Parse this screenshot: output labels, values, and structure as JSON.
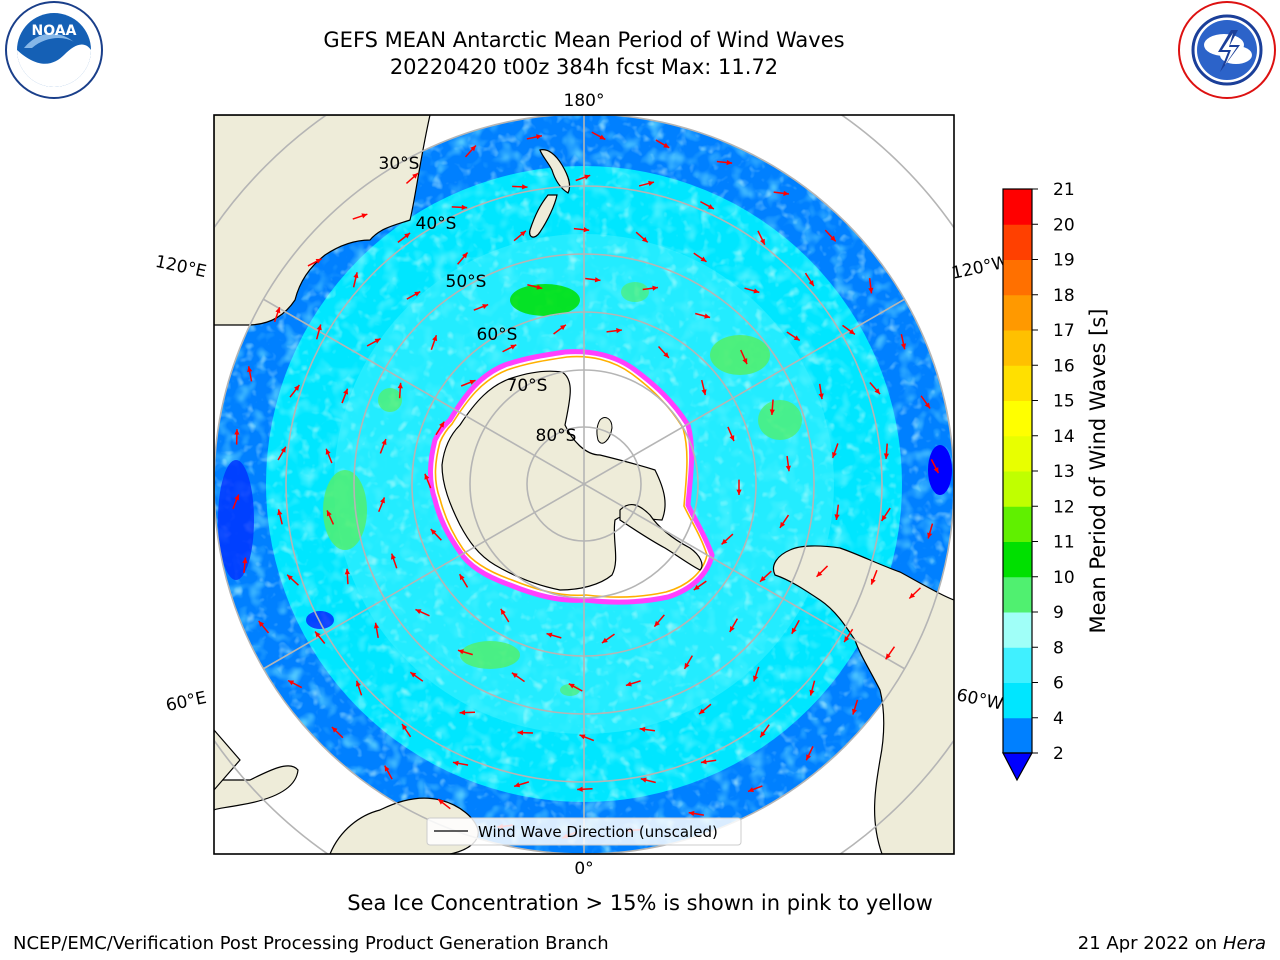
{
  "title": {
    "line1": "GEFS MEAN Antarctic Mean Period of Wind Waves",
    "line2": "20220420 t00z 384h fcst   Max: 11.72"
  },
  "logos": {
    "left": {
      "name": "noaa-logo",
      "text": "NOAA"
    },
    "right": {
      "name": "national-weather-service-logo",
      "text": "NATIONAL WEATHER SERVICE"
    }
  },
  "map": {
    "projection": "south-polar-stereographic",
    "lon_labels": {
      "top": "180°",
      "bottom": "0°",
      "upper_left": "120°E",
      "upper_right": "120°W",
      "lower_left": "60°E",
      "lower_right": "60°W"
    },
    "lat_labels": [
      "30°S",
      "40°S",
      "50°S",
      "60°S",
      "70°S",
      "80°S"
    ],
    "legend_label": "Wind Wave Direction (unscaled)",
    "colors": {
      "land": "#eeecd9",
      "ice_edge": "#ff40ff",
      "ice_inner_edge": "#ffb000",
      "arrow": "#ff0000",
      "grid": "#b5b5b5"
    }
  },
  "colorbar": {
    "label": "Mean Period of Wind Waves [s]",
    "ticks": [
      "2",
      "4",
      "6",
      "8",
      "9",
      "10",
      "11",
      "12",
      "13",
      "14",
      "15",
      "16",
      "17",
      "18",
      "19",
      "20",
      "21"
    ],
    "colors": [
      "#0080ff",
      "#00e6ff",
      "#40f0ff",
      "#a0fff8",
      "#50f070",
      "#00e000",
      "#60f000",
      "#c0ff00",
      "#e8ff00",
      "#ffff00",
      "#ffe000",
      "#ffc000",
      "#ff9900",
      "#ff7000",
      "#ff4000",
      "#ff0000"
    ],
    "extend_min_color": "#0000ff"
  },
  "footer": {
    "sea_ice_note": "Sea Ice Concentration > 15% is shown in pink to yellow",
    "credit": "NCEP/EMC/Verification Post Processing Product Generation Branch",
    "date": "21 Apr 2022 on ",
    "host": "Hera"
  }
}
